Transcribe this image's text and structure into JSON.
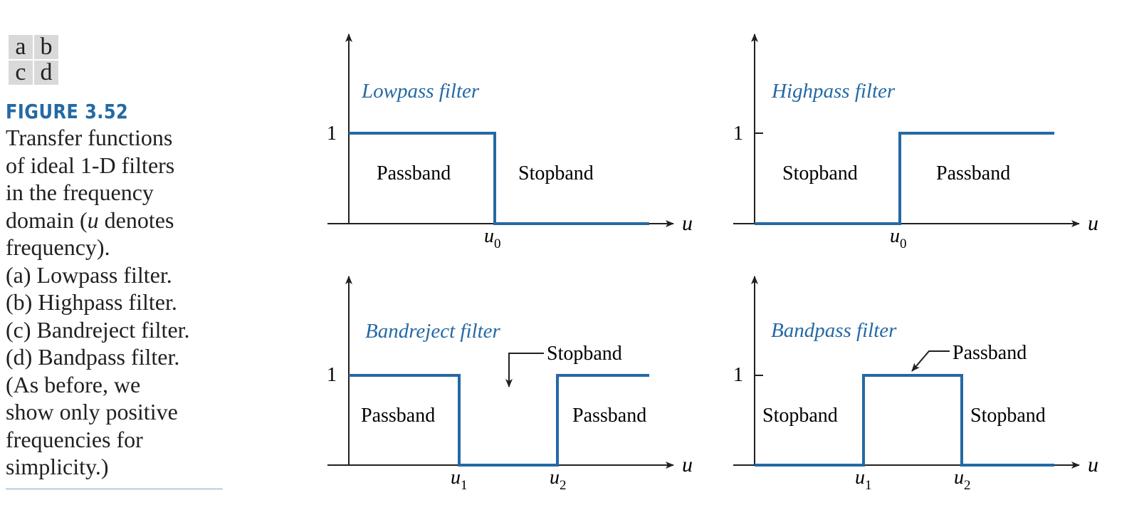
{
  "panel_grid": {
    "rows": [
      [
        {
          "letter": "a"
        },
        {
          "letter": "b"
        }
      ],
      [
        {
          "letter": "c"
        },
        {
          "letter": "d"
        }
      ]
    ]
  },
  "figure": {
    "label": "FIGURE 3.52",
    "caption_lines": [
      {
        "segments": [
          {
            "text": "Transfer functions"
          }
        ]
      },
      {
        "segments": [
          {
            "text": "of ideal 1-D filters"
          }
        ]
      },
      {
        "segments": [
          {
            "text": "in the frequency"
          }
        ]
      },
      {
        "segments": [
          {
            "text": "domain ("
          },
          {
            "text": "u",
            "italic": true
          },
          {
            "text": " denotes"
          }
        ]
      },
      {
        "segments": [
          {
            "text": "frequency)."
          }
        ]
      },
      {
        "segments": [
          {
            "text": "(a) Lowpass filter."
          }
        ]
      },
      {
        "segments": [
          {
            "text": "(b) Highpass filter."
          }
        ]
      },
      {
        "segments": [
          {
            "text": "(c) Bandreject filter."
          }
        ]
      },
      {
        "segments": [
          {
            "text": "(d) Bandpass filter."
          }
        ]
      },
      {
        "segments": [
          {
            "text": "(As before, we"
          }
        ]
      },
      {
        "segments": [
          {
            "text": "show only positive"
          }
        ]
      },
      {
        "segments": [
          {
            "text": "frequencies for"
          }
        ]
      },
      {
        "segments": [
          {
            "text": "simplicity.)"
          }
        ]
      }
    ]
  },
  "colors": {
    "curve": "#2469a4",
    "axis": "#231f20",
    "title": "#2469a4",
    "panel_cell": "#d9d9d9"
  },
  "panels": [
    {
      "id": "a",
      "title": "Lowpass filter",
      "y_tick": "1",
      "x_label": "u",
      "x_ticks": [
        {
          "main": "u",
          "sub": "0"
        }
      ],
      "regions": [
        "Passband",
        "Stopband"
      ],
      "callout": null
    },
    {
      "id": "b",
      "title": "Highpass filter",
      "y_tick": "1",
      "x_label": "u",
      "x_ticks": [
        {
          "main": "u",
          "sub": "0"
        }
      ],
      "regions": [
        "Stopband",
        "Passband"
      ],
      "callout": null
    },
    {
      "id": "c",
      "title": "Bandreject filter",
      "y_tick": "1",
      "x_label": "u",
      "x_ticks": [
        {
          "main": "u",
          "sub": "1"
        },
        {
          "main": "u",
          "sub": "2"
        }
      ],
      "regions": [
        "Passband",
        "Passband"
      ],
      "callout": "Stopband"
    },
    {
      "id": "d",
      "title": "Bandpass filter",
      "y_tick": "1",
      "x_label": "u",
      "x_ticks": [
        {
          "main": "u",
          "sub": "1"
        },
        {
          "main": "u",
          "sub": "2"
        }
      ],
      "regions": [
        "Stopband",
        "Stopband"
      ],
      "callout": "Passband"
    }
  ]
}
